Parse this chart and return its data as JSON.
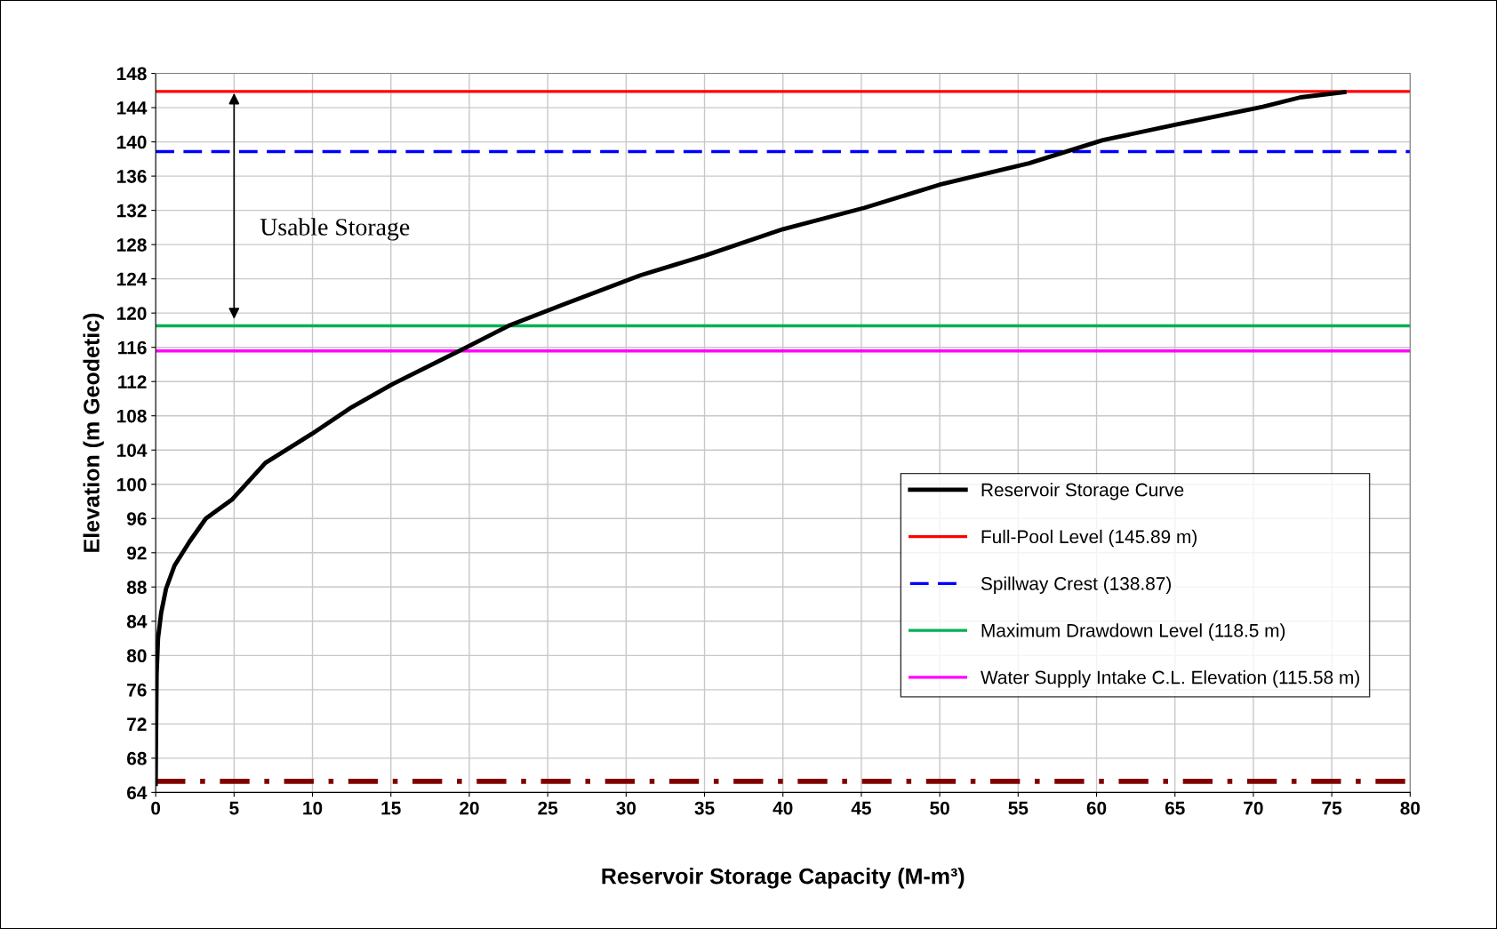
{
  "chart_data": {
    "type": "line",
    "xlabel": "Reservoir Storage Capacity (M-m³)",
    "ylabel": "Elevation (m Geodetic)",
    "x": [
      0,
      0.02,
      0.06,
      0.15,
      0.35,
      0.66,
      1.2,
      2.16,
      3.2,
      4.86,
      7.0,
      9.97,
      12.5,
      15.1,
      19.6,
      22.6,
      26.0,
      30.9,
      35.0,
      40.0,
      45.2,
      50.0,
      55.7,
      60.4,
      65.0,
      70.6,
      73.0,
      75.8
    ],
    "series": [
      {
        "name": "Reservoir Storage Curve",
        "color": "#000000",
        "values": [
          65,
          70,
          77.8,
          82,
          85,
          87.8,
          90.5,
          93.3,
          96,
          98.2,
          102.5,
          105.9,
          109,
          111.7,
          115.8,
          118.6,
          121,
          124.4,
          126.7,
          129.8,
          132.3,
          135,
          137.5,
          140.2,
          142,
          144.1,
          145.2,
          145.8
        ]
      }
    ],
    "ref_lines": [
      {
        "axis": "y",
        "value": 145.89,
        "label": "Full-Pool Level (145.89 m)",
        "color": "#ff0000",
        "line_style": "solid"
      },
      {
        "axis": "y",
        "value": 138.87,
        "label": "Spillway Crest (138.87)",
        "color": "#0000ff",
        "line_style": "dashed"
      },
      {
        "axis": "y",
        "value": 118.5,
        "label": "Maximum Drawdown Level (118.5 m)",
        "color": "#00b050",
        "line_style": "solid"
      },
      {
        "axis": "y",
        "value": 115.58,
        "label": "Water Supply Intake C.L. Elevation (115.58 m)",
        "color": "#ff00ff",
        "line_style": "solid"
      },
      {
        "axis": "y",
        "value": 65.3,
        "color": "#800000",
        "line_style": "dashdot"
      }
    ],
    "annotations": [
      "Usable Storage"
    ],
    "xlim": [
      0,
      80
    ],
    "xticks": [
      0,
      5,
      10,
      15,
      20,
      25,
      30,
      35,
      40,
      45,
      50,
      55,
      60,
      65,
      70,
      75,
      80
    ],
    "ylim": [
      64,
      148
    ],
    "yticks": [
      64,
      68,
      72,
      76,
      80,
      84,
      88,
      92,
      96,
      100,
      104,
      108,
      112,
      116,
      120,
      124,
      128,
      132,
      136,
      140,
      144,
      148
    ],
    "grid": true,
    "legend": "bottom right",
    "marker": "none",
    "line_style": "solid"
  }
}
